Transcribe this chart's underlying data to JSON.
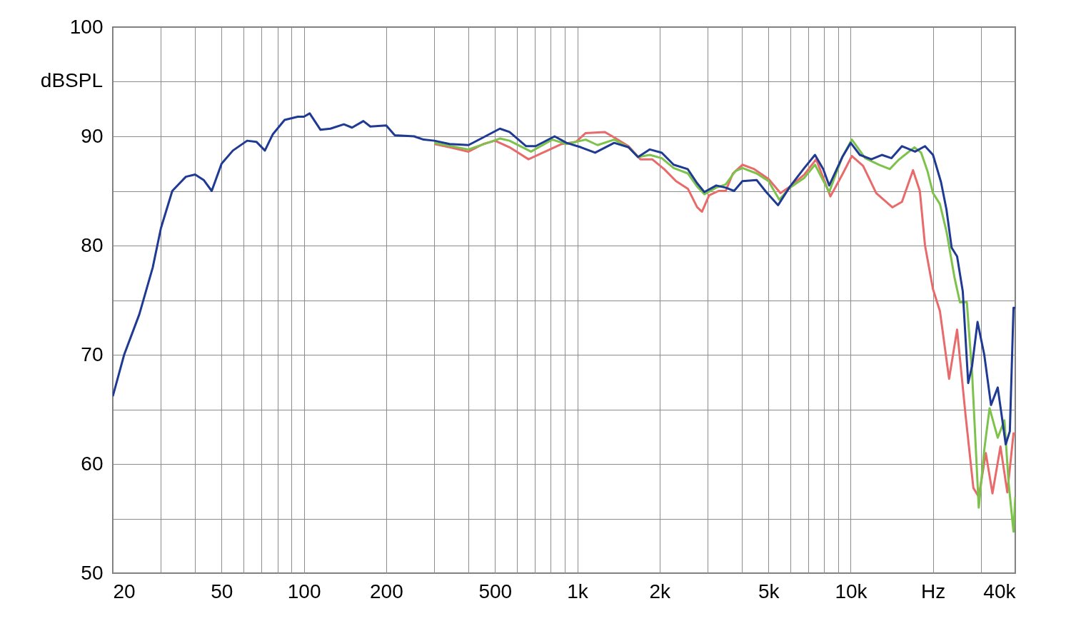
{
  "chart_data": {
    "type": "line",
    "ylabel": "dBSPL",
    "log": "x",
    "grid": true,
    "xlim": [
      20,
      40000
    ],
    "ylim": [
      50,
      100
    ],
    "xticks": [
      20,
      {
        "value": 30,
        "label": null
      },
      {
        "value": 40,
        "label": null
      },
      50,
      {
        "value": 60,
        "label": null
      },
      {
        "value": 70,
        "label": null
      },
      {
        "value": 80,
        "label": null
      },
      {
        "value": 90,
        "label": null
      },
      100,
      200,
      {
        "value": 300,
        "label": null
      },
      {
        "value": 400,
        "label": null
      },
      500,
      {
        "value": 600,
        "label": null
      },
      {
        "value": 700,
        "label": null
      },
      {
        "value": 800,
        "label": null
      },
      {
        "value": 900,
        "label": null
      },
      {
        "value": 1000,
        "label": "1k"
      },
      {
        "value": 2000,
        "label": "2k"
      },
      {
        "value": 3000,
        "label": null
      },
      {
        "value": 4000,
        "label": null
      },
      {
        "value": 5000,
        "label": "5k"
      },
      {
        "value": 6000,
        "label": null
      },
      {
        "value": 7000,
        "label": null
      },
      {
        "value": 8000,
        "label": null
      },
      {
        "value": 9000,
        "label": null
      },
      {
        "value": 10000,
        "label": "10k"
      },
      {
        "value": 20000,
        "label": "Hz"
      },
      {
        "value": 30000,
        "label": null
      },
      {
        "value": 40000,
        "label": "40k"
      }
    ],
    "yticks": [
      50,
      {
        "value": 55,
        "label": null
      },
      60,
      {
        "value": 65,
        "label": null
      },
      70,
      {
        "value": 75,
        "label": null
      },
      80,
      {
        "value": 85,
        "label": null
      },
      90,
      {
        "value": 95,
        "label": null
      },
      100
    ],
    "series": [
      {
        "color": "#e86a6a",
        "x": [
          300,
          341,
          400,
          453,
          500,
          565,
          663,
          778,
          878,
          990,
          1073,
          1259,
          1364,
          1539,
          1701,
          1879,
          2078,
          2296,
          2538,
          2745,
          2858,
          3034,
          3287,
          3490,
          3707,
          4017,
          4438,
          5006,
          5534,
          5996,
          6764,
          7476,
          8430,
          9317,
          10100,
          11100,
          12400,
          14200,
          15400,
          16900,
          17900,
          18700,
          20000,
          21200,
          22900,
          24500,
          26300,
          28100,
          29400,
          31200,
          33000,
          35300,
          37400,
          39400,
          40000
        ],
        "values": [
          89.3,
          89.0,
          88.6,
          89.3,
          89.6,
          89.0,
          87.9,
          88.7,
          89.3,
          89.5,
          90.3,
          90.4,
          89.9,
          89.1,
          87.9,
          87.9,
          87.0,
          85.9,
          85.2,
          83.5,
          83.1,
          84.6,
          85.0,
          85.0,
          86.6,
          87.4,
          87.0,
          86.1,
          84.8,
          85.4,
          86.5,
          87.9,
          84.5,
          86.5,
          88.2,
          87.3,
          84.8,
          83.5,
          84.0,
          86.9,
          85.0,
          80.0,
          76.0,
          74.0,
          67.8,
          72.3,
          64.5,
          57.8,
          57.0,
          61.0,
          57.3,
          61.6,
          57.4,
          62.8,
          62.8
        ]
      },
      {
        "color": "#7dc24b",
        "x": [
          300,
          400,
          521,
          565,
          677,
          810,
          913,
          1073,
          1186,
          1364,
          1539,
          1667,
          1842,
          2037,
          2251,
          2538,
          2745,
          2915,
          3222,
          3490,
          3782,
          4017,
          4529,
          5006,
          5478,
          5996,
          6764,
          7402,
          8343,
          9317,
          10100,
          11300,
          12700,
          13900,
          14900,
          17100,
          18100,
          19100,
          20000,
          21200,
          22400,
          24000,
          25100,
          26600,
          27800,
          29400,
          30800,
          32200,
          34500,
          36500,
          37800,
          39400,
          40000
        ],
        "values": [
          89.4,
          88.8,
          89.8,
          89.6,
          88.6,
          89.7,
          89.3,
          89.7,
          89.2,
          89.7,
          89.0,
          88.1,
          88.3,
          88.0,
          87.1,
          86.6,
          85.4,
          84.7,
          85.3,
          85.6,
          86.8,
          87.1,
          86.6,
          85.9,
          84.2,
          85.3,
          86.2,
          87.4,
          84.9,
          88.1,
          89.7,
          88.0,
          87.4,
          87.0,
          87.8,
          89.0,
          88.5,
          86.8,
          84.8,
          83.8,
          81.3,
          77.0,
          74.8,
          74.8,
          68.3,
          56.0,
          61.3,
          65.1,
          62.4,
          64.0,
          58.3,
          53.8,
          57.0
        ]
      },
      {
        "color": "#1f3a93",
        "x": [
          20,
          22,
          25,
          28,
          30,
          33,
          37,
          40,
          43,
          46,
          50,
          55,
          62,
          67,
          72,
          77,
          85,
          95,
          100,
          105,
          115,
          125,
          140,
          150,
          165,
          175,
          200,
          215,
          253,
          274,
          300,
          341,
          400,
          453,
          521,
          565,
          650,
          704,
          826,
          913,
          1030,
          1162,
          1364,
          1539,
          1667,
          1842,
          2037,
          2251,
          2533,
          2745,
          2915,
          3222,
          3490,
          3745,
          4017,
          4529,
          4908,
          5425,
          5996,
          6764,
          7402,
          7936,
          8343,
          9317,
          10000,
          10800,
          11900,
          13000,
          14100,
          15400,
          17200,
          18700,
          20000,
          21400,
          22400,
          23400,
          24500,
          25700,
          26900,
          27800,
          29100,
          30800,
          32600,
          34500,
          36900,
          38200,
          39400,
          40000
        ],
        "values": [
          66.2,
          70.0,
          73.7,
          78.0,
          81.6,
          85.0,
          86.3,
          86.5,
          86.0,
          85.0,
          87.5,
          88.7,
          89.6,
          89.5,
          88.7,
          90.2,
          91.5,
          91.8,
          91.8,
          92.1,
          90.6,
          90.7,
          91.1,
          90.8,
          91.4,
          90.9,
          91.0,
          90.1,
          90.0,
          89.7,
          89.6,
          89.3,
          89.2,
          89.9,
          90.7,
          90.4,
          89.1,
          89.1,
          90.0,
          89.4,
          89.0,
          88.5,
          89.4,
          89.0,
          88.1,
          88.8,
          88.5,
          87.4,
          87.0,
          85.7,
          84.9,
          85.5,
          85.3,
          85.0,
          85.9,
          86.0,
          84.9,
          83.7,
          85.4,
          87.1,
          88.3,
          87.0,
          85.5,
          88.1,
          89.4,
          88.3,
          87.9,
          88.3,
          88.0,
          89.1,
          88.6,
          89.1,
          88.3,
          85.8,
          83.3,
          79.8,
          79.0,
          75.8,
          67.4,
          69.0,
          73.0,
          70.0,
          65.4,
          67.0,
          61.8,
          63.0,
          74.3,
          74.3
        ]
      }
    ]
  }
}
